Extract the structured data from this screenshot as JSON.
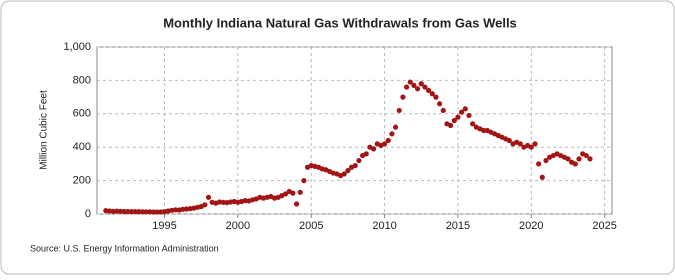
{
  "chart_data": {
    "type": "scatter",
    "title": "Monthly Indiana Natural Gas Withdrawals from Gas Wells",
    "y_label": "Million Cubic Feet",
    "source": "Source: U.S. Energy Information Administration",
    "color": "#a31515",
    "x": [
      1991,
      1991.25,
      1991.5,
      1991.75,
      1992,
      1992.25,
      1992.5,
      1992.75,
      1993,
      1993.25,
      1993.5,
      1993.75,
      1994,
      1994.25,
      1994.5,
      1994.75,
      1995,
      1995.25,
      1995.5,
      1995.75,
      1996,
      1996.25,
      1996.5,
      1996.75,
      1997,
      1997.25,
      1997.5,
      1997.75,
      1998,
      1998.25,
      1998.5,
      1998.75,
      1999,
      1999.25,
      1999.5,
      1999.75,
      2000,
      2000.25,
      2000.5,
      2000.75,
      2001,
      2001.25,
      2001.5,
      2001.75,
      2002,
      2002.25,
      2002.5,
      2002.75,
      2003,
      2003.25,
      2003.5,
      2003.75,
      2004,
      2004.25,
      2004.5,
      2004.75,
      2005,
      2005.25,
      2005.5,
      2005.75,
      2006,
      2006.25,
      2006.5,
      2006.75,
      2007,
      2007.25,
      2007.5,
      2007.75,
      2008,
      2008.25,
      2008.5,
      2008.75,
      2009,
      2009.25,
      2009.5,
      2009.75,
      2010,
      2010.25,
      2010.5,
      2010.75,
      2011,
      2011.25,
      2011.5,
      2011.75,
      2012,
      2012.25,
      2012.5,
      2012.75,
      2013,
      2013.25,
      2013.5,
      2013.75,
      2014,
      2014.25,
      2014.5,
      2014.75,
      2015,
      2015.25,
      2015.5,
      2015.75,
      2016,
      2016.25,
      2016.5,
      2016.75,
      2017,
      2017.25,
      2017.5,
      2017.75,
      2018,
      2018.25,
      2018.5,
      2018.75,
      2019,
      2019.25,
      2019.5,
      2019.75,
      2020,
      2020.25,
      2020.5,
      2020.75,
      2021,
      2021.25,
      2021.5,
      2021.75,
      2022,
      2022.25,
      2022.5,
      2022.75,
      2023,
      2023.25,
      2023.5,
      2023.75,
      2024
    ],
    "values": [
      20,
      18,
      16,
      17,
      16,
      15,
      15,
      14,
      14,
      14,
      13,
      13,
      13,
      12,
      12,
      12,
      14,
      18,
      22,
      25,
      24,
      28,
      30,
      32,
      35,
      40,
      45,
      55,
      100,
      70,
      65,
      72,
      70,
      68,
      72,
      75,
      70,
      75,
      80,
      78,
      85,
      90,
      100,
      95,
      100,
      105,
      95,
      100,
      110,
      120,
      135,
      125,
      60,
      130,
      200,
      280,
      290,
      285,
      280,
      270,
      265,
      255,
      245,
      240,
      230,
      240,
      260,
      280,
      290,
      320,
      350,
      360,
      400,
      390,
      420,
      410,
      420,
      440,
      480,
      520,
      620,
      700,
      760,
      790,
      770,
      750,
      780,
      760,
      740,
      720,
      700,
      660,
      620,
      540,
      530,
      560,
      580,
      610,
      630,
      590,
      540,
      520,
      510,
      500,
      500,
      490,
      480,
      470,
      460,
      450,
      440,
      420,
      430,
      420,
      400,
      410,
      400,
      420,
      300,
      220,
      320,
      340,
      350,
      360,
      350,
      340,
      330,
      310,
      300,
      330,
      360,
      350,
      330
    ],
    "xlim": [
      1990.4,
      2025.5
    ],
    "xticks": [
      1995,
      2000,
      2005,
      2010,
      2015,
      2020,
      2025
    ],
    "ylim": [
      0,
      1000
    ],
    "yticks": [
      0,
      200,
      400,
      600,
      800,
      {
        "value": 1000,
        "label": "1,000"
      }
    ],
    "grid": true
  }
}
